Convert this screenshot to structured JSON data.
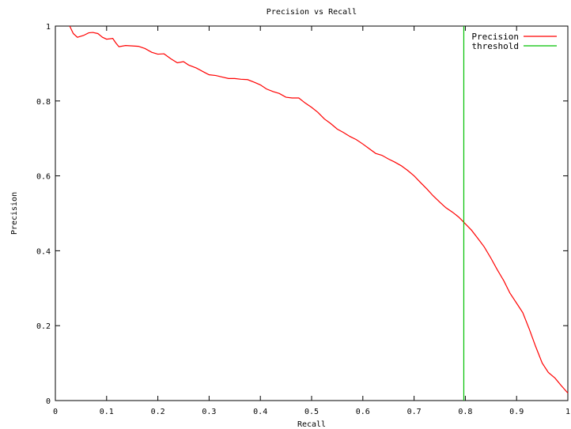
{
  "chart_data": {
    "type": "line",
    "title": "Precision vs Recall",
    "xlabel": "Recall",
    "ylabel": "Precision",
    "xlim": [
      0,
      1
    ],
    "ylim": [
      0,
      1
    ],
    "x_ticks": [
      "0",
      "0.1",
      "0.2",
      "0.3",
      "0.4",
      "0.5",
      "0.6",
      "0.7",
      "0.8",
      "0.9",
      "1"
    ],
    "y_ticks": [
      "0",
      "0.2",
      "0.4",
      "0.6",
      "0.8",
      "1"
    ],
    "grid": false,
    "legend_position": "top-right",
    "series": [
      {
        "name": "Precision",
        "color": "#ff0000",
        "x": [
          0.028,
          0.035,
          0.043,
          0.055,
          0.065,
          0.073,
          0.083,
          0.092,
          0.1,
          0.112,
          0.118,
          0.124,
          0.137,
          0.15,
          0.162,
          0.175,
          0.188,
          0.2,
          0.212,
          0.225,
          0.238,
          0.25,
          0.26,
          0.275,
          0.29,
          0.3,
          0.313,
          0.325,
          0.338,
          0.35,
          0.362,
          0.375,
          0.388,
          0.4,
          0.412,
          0.425,
          0.437,
          0.45,
          0.462,
          0.475,
          0.487,
          0.5,
          0.512,
          0.525,
          0.537,
          0.55,
          0.562,
          0.575,
          0.587,
          0.6,
          0.612,
          0.625,
          0.637,
          0.65,
          0.662,
          0.675,
          0.687,
          0.7,
          0.712,
          0.725,
          0.737,
          0.75,
          0.762,
          0.775,
          0.787,
          0.8,
          0.812,
          0.825,
          0.837,
          0.85,
          0.862,
          0.875,
          0.887,
          0.9,
          0.912,
          0.925,
          0.937,
          0.95,
          0.962,
          0.975,
          0.987,
          1.0
        ],
        "y": [
          1.0,
          0.98,
          0.97,
          0.975,
          0.982,
          0.983,
          0.98,
          0.97,
          0.965,
          0.967,
          0.955,
          0.945,
          0.948,
          0.947,
          0.946,
          0.94,
          0.93,
          0.925,
          0.926,
          0.913,
          0.902,
          0.905,
          0.896,
          0.888,
          0.877,
          0.87,
          0.868,
          0.864,
          0.86,
          0.86,
          0.858,
          0.857,
          0.85,
          0.843,
          0.832,
          0.825,
          0.82,
          0.81,
          0.808,
          0.808,
          0.795,
          0.783,
          0.77,
          0.752,
          0.74,
          0.725,
          0.716,
          0.705,
          0.697,
          0.685,
          0.673,
          0.66,
          0.655,
          0.645,
          0.637,
          0.627,
          0.615,
          0.6,
          0.583,
          0.565,
          0.547,
          0.53,
          0.515,
          0.503,
          0.49,
          0.472,
          0.455,
          0.432,
          0.41,
          0.38,
          0.35,
          0.32,
          0.287,
          0.26,
          0.235,
          0.19,
          0.145,
          0.1,
          0.075,
          0.06,
          0.04,
          0.02
        ]
      },
      {
        "name": "threshold",
        "color": "#00c000",
        "x": [
          0.797,
          0.797
        ],
        "y": [
          0,
          1
        ]
      }
    ]
  }
}
